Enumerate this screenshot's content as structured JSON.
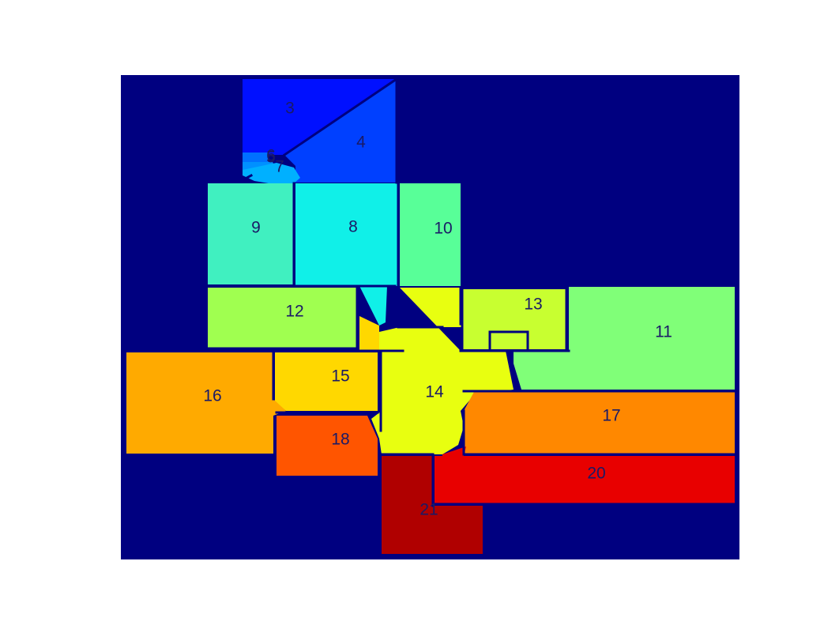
{
  "colors": {
    "background": "#000080",
    "walls": "#000080"
  },
  "regions": [
    {
      "id": "3",
      "label": "3",
      "color": "#0010ff"
    },
    {
      "id": "4",
      "label": "4",
      "color": "#0040ff"
    },
    {
      "id": "5",
      "label": "5",
      "color": "#0070ff"
    },
    {
      "id": "6",
      "label": "6",
      "color": "#0090ff"
    },
    {
      "id": "7",
      "label": "7",
      "color": "#00b0ff"
    },
    {
      "id": "8",
      "label": "8",
      "color": "#10f0e8"
    },
    {
      "id": "9",
      "label": "9",
      "color": "#40f0c0"
    },
    {
      "id": "10",
      "label": "10",
      "color": "#58ff98"
    },
    {
      "id": "11",
      "label": "11",
      "color": "#80ff78"
    },
    {
      "id": "12",
      "label": "12",
      "color": "#a0ff50"
    },
    {
      "id": "13",
      "label": "13",
      "color": "#c8ff30"
    },
    {
      "id": "14",
      "label": "14",
      "color": "#e8ff10"
    },
    {
      "id": "15",
      "label": "15",
      "color": "#ffd800"
    },
    {
      "id": "16",
      "label": "16",
      "color": "#ffaa00"
    },
    {
      "id": "17",
      "label": "17",
      "color": "#ff8800"
    },
    {
      "id": "18",
      "label": "18",
      "color": "#ff5500"
    },
    {
      "id": "20",
      "label": "20",
      "color": "#e80000"
    },
    {
      "id": "21",
      "label": "21",
      "color": "#b00000"
    }
  ]
}
